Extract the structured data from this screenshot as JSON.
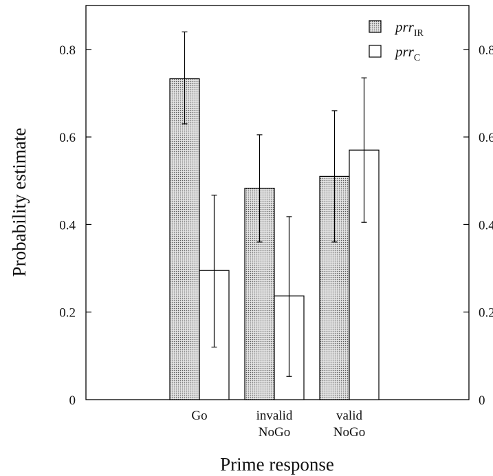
{
  "chart_data": {
    "type": "bar",
    "xlabel": "Prime response",
    "ylabel": "Probability estimate",
    "ylim": [
      0,
      0.9
    ],
    "yticks": [
      0,
      0.2,
      0.4,
      0.6,
      0.8
    ],
    "ytick_labels": [
      "0",
      "0.2",
      "0.4",
      "0.6",
      "0.8"
    ],
    "categories": [
      {
        "lines": [
          "Go"
        ]
      },
      {
        "lines": [
          "invalid",
          "NoGo"
        ]
      },
      {
        "lines": [
          "valid",
          "NoGo"
        ]
      }
    ],
    "series": [
      {
        "name_main": "prr",
        "name_sub": "IR",
        "fill": "dotted-gray",
        "values": [
          0.733,
          0.483,
          0.51
        ],
        "err_low": [
          0.63,
          0.36,
          0.36
        ],
        "err_high": [
          0.84,
          0.605,
          0.66
        ]
      },
      {
        "name_main": "prr",
        "name_sub": "C",
        "fill": "white",
        "values": [
          0.295,
          0.237,
          0.57
        ],
        "err_low": [
          0.12,
          0.053,
          0.405
        ],
        "err_high": [
          0.467,
          0.418,
          0.735
        ]
      }
    ],
    "legend_position": "top-right",
    "grid": false
  }
}
